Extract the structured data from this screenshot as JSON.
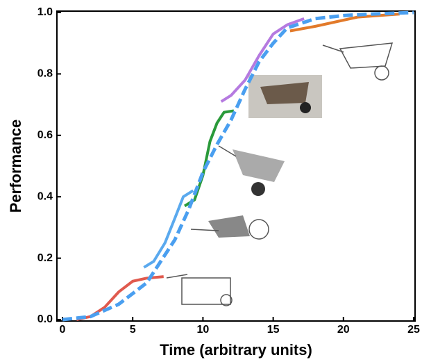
{
  "chart_data": {
    "type": "line",
    "xlabel": "Time (arbitrary units)",
    "ylabel": "Performance",
    "xlim": [
      0,
      25
    ],
    "xticks": [
      0,
      5,
      10,
      15,
      20,
      25
    ],
    "ylim": [
      0,
      1.0
    ],
    "yticks": [
      {
        "value": 0,
        "label": "0.0"
      },
      0.2,
      0.4,
      0.6,
      0.8,
      {
        "value": 1.0,
        "label": "1.0"
      }
    ],
    "series": [
      {
        "color": "#e05a4e",
        "x": [
          1,
          2,
          3,
          4,
          5,
          6,
          7.2
        ],
        "values": [
          0,
          0.01,
          0.04,
          0.09,
          0.125,
          0.135,
          0.14
        ]
      },
      {
        "color": "#5aa9ee",
        "x": [
          5.8,
          6.5,
          7.3,
          8,
          8.6,
          9.3
        ],
        "values": [
          0.17,
          0.19,
          0.25,
          0.33,
          0.4,
          0.42
        ]
      },
      {
        "color": "#2a9a3a",
        "x": [
          8.7,
          9.4,
          10,
          10.5,
          11,
          11.5,
          12.2
        ],
        "values": [
          0.37,
          0.39,
          0.47,
          0.58,
          0.64,
          0.675,
          0.68
        ]
      },
      {
        "color": "#b57ae0",
        "x": [
          11.3,
          12,
          13,
          14,
          15,
          16,
          17.2
        ],
        "values": [
          0.71,
          0.73,
          0.78,
          0.86,
          0.93,
          0.96,
          0.98
        ]
      },
      {
        "color": "#e27a2a",
        "x": [
          16.2,
          18,
          19.5,
          21,
          22.5,
          24
        ],
        "values": [
          0.94,
          0.955,
          0.97,
          0.985,
          0.99,
          0.995
        ]
      },
      {
        "color": "#4a9ff0",
        "dash": true,
        "x": [
          0,
          2,
          4,
          6,
          8,
          9,
          10,
          11,
          12,
          13,
          14,
          15,
          16,
          18,
          20,
          22,
          25
        ],
        "values": [
          0,
          0.01,
          0.05,
          0.12,
          0.26,
          0.36,
          0.48,
          0.57,
          0.65,
          0.75,
          0.84,
          0.9,
          0.95,
          0.98,
          0.99,
          0.995,
          1.0
        ]
      }
    ]
  }
}
